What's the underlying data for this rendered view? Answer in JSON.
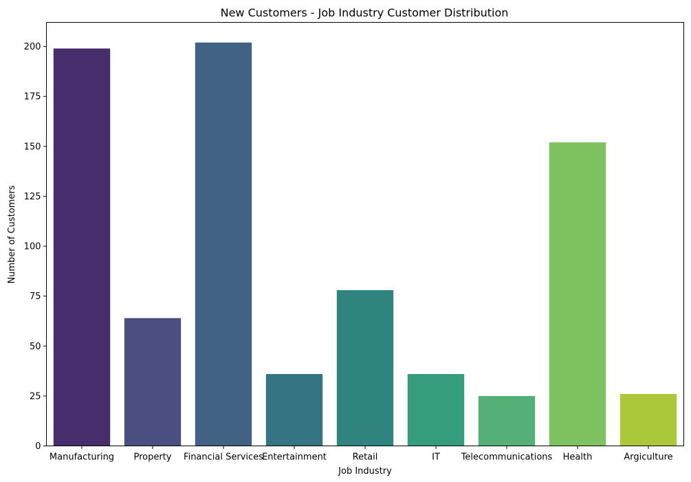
{
  "chart_data": {
    "type": "bar",
    "title": "New Customers - Job Industry Customer Distribution",
    "xlabel": "Job Industry",
    "ylabel": "Number of Customers",
    "categories": [
      "Manufacturing",
      "Property",
      "Financial Services",
      "Entertainment",
      "Retail",
      "IT",
      "Telecommunications",
      "Health",
      "Argiculture"
    ],
    "values": [
      199,
      64,
      202,
      36,
      78,
      36,
      25,
      152,
      26
    ],
    "colors": [
      "#482d6c",
      "#4a4e80",
      "#416185",
      "#357483",
      "#2f847e",
      "#359c7e",
      "#54b077",
      "#7fc360",
      "#abc83b"
    ],
    "yticks": [
      0,
      25,
      50,
      75,
      100,
      125,
      150,
      175,
      200
    ],
    "ylim": [
      0,
      212.1
    ],
    "grid": false,
    "legend": "none"
  }
}
